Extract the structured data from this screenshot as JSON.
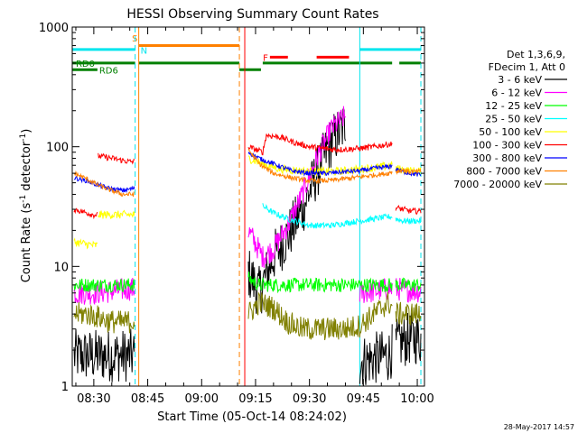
{
  "chart_data": {
    "type": "line",
    "title": "HESSI Observing Summary Count Rates",
    "xlabel": "Start Time (05-Oct-14 08:24:02)",
    "ylabel_main": "Count Rate (s",
    "ylabel_sup1": "-1",
    "ylabel_mid": " detector",
    "ylabel_sup2": "-1",
    "ylabel_end": ")",
    "yscale": "log",
    "xlim": [
      24,
      122
    ],
    "ylim": [
      1,
      1000
    ],
    "x_ticks": [
      {
        "value": 30,
        "label": "08:30"
      },
      {
        "value": 45,
        "label": "08:45"
      },
      {
        "value": 60,
        "label": "09:00"
      },
      {
        "value": 75,
        "label": "09:15"
      },
      {
        "value": 90,
        "label": "09:30"
      },
      {
        "value": 105,
        "label": "09:45"
      },
      {
        "value": 120,
        "label": "10:00"
      }
    ],
    "y_ticks": [
      {
        "value": 1,
        "label": "1"
      },
      {
        "value": 10,
        "label": "10"
      },
      {
        "value": 100,
        "label": "100"
      },
      {
        "value": 1000,
        "label": "1000"
      }
    ],
    "legend_header": [
      "Det 1,3,6,9,",
      "FDecim 1, Att 0"
    ],
    "legend_position": "right",
    "timestamp": "28-May-2017 14:57",
    "flag_bars": [
      {
        "label": "S",
        "color": "#ff8000",
        "level": 700,
        "segments": [
          [
            42.5,
            70.5
          ]
        ]
      },
      {
        "label": "N",
        "color": "#00e5ee",
        "level": 650,
        "segments": [
          [
            24,
            41.5
          ],
          [
            104,
            121
          ]
        ]
      },
      {
        "label": "F",
        "color": "#ff0000",
        "level": 560,
        "segments": [
          [
            79,
            84
          ],
          [
            92,
            101
          ]
        ]
      },
      {
        "label": "RD0",
        "color": "#008000",
        "level": 500,
        "segments": [
          [
            24,
            41.5
          ],
          [
            42.5,
            70.5
          ],
          [
            77,
            113
          ],
          [
            115,
            121
          ]
        ]
      },
      {
        "label": "RD6",
        "color": "#008000",
        "level": 440,
        "segments": [
          [
            24,
            31
          ],
          [
            70.5,
            76.5
          ]
        ]
      }
    ],
    "vertical_markers": [
      {
        "x": 41.5,
        "color": "#00e5ee",
        "style": "dashed"
      },
      {
        "x": 42.5,
        "color": "#ff8000",
        "style": "solid"
      },
      {
        "x": 70.5,
        "color": "#ff8000",
        "style": "dashed"
      },
      {
        "x": 72.0,
        "color": "#ff0000",
        "style": "solid"
      },
      {
        "x": 104.0,
        "color": "#00e5ee",
        "style": "solid"
      },
      {
        "x": 121.0,
        "color": "#00e5ee",
        "style": "dashed"
      }
    ],
    "series": [
      {
        "name": "3 - 6 keV",
        "color": "#000000",
        "noise": 0.45,
        "segments": [
          [
            [
              24.5,
              1.8
            ],
            [
              30,
              1.8
            ],
            [
              35,
              1.8
            ],
            [
              40,
              1.8
            ],
            [
              41.3,
              1.8
            ]
          ],
          [
            [
              73,
              9
            ],
            [
              76,
              6
            ],
            [
              80,
              12
            ],
            [
              84,
              18
            ],
            [
              88,
              30
            ],
            [
              92,
              60
            ],
            [
              96,
              110
            ],
            [
              99,
              140
            ],
            [
              100,
              160
            ]
          ],
          [
            [
              104,
              1.6
            ],
            [
              108,
              1.7
            ],
            [
              112,
              1.8
            ],
            [
              113,
              2
            ]
          ],
          [
            [
              114,
              2.2
            ],
            [
              118,
              2.5
            ],
            [
              121,
              2.5
            ]
          ]
        ]
      },
      {
        "name": "6 - 12 keV",
        "color": "#ff00ff",
        "noise": 0.2,
        "segments": [
          [
            [
              24.5,
              6
            ],
            [
              30,
              6
            ],
            [
              35,
              6.2
            ],
            [
              40,
              6.5
            ],
            [
              41.3,
              6.5
            ]
          ],
          [
            [
              73,
              20
            ],
            [
              77,
              12
            ],
            [
              80,
              14
            ],
            [
              84,
              22
            ],
            [
              88,
              40
            ],
            [
              92,
              80
            ],
            [
              96,
              140
            ],
            [
              99,
              170
            ],
            [
              100,
              180
            ]
          ],
          [
            [
              104,
              6
            ],
            [
              108,
              6.2
            ],
            [
              112,
              6.5
            ],
            [
              113,
              6.5
            ]
          ],
          [
            [
              114,
              6.5
            ],
            [
              118,
              6.3
            ],
            [
              121,
              6.2
            ]
          ]
        ]
      },
      {
        "name": "12 - 25 keV",
        "color": "#00ff00",
        "noise": 0.12,
        "segments": [
          [
            [
              24.5,
              7
            ],
            [
              30,
              7
            ],
            [
              35,
              7
            ],
            [
              40,
              7
            ],
            [
              41.3,
              7
            ]
          ],
          [
            [
              73,
              8
            ],
            [
              76,
              7
            ],
            [
              78,
              7
            ],
            [
              80,
              7
            ],
            [
              90,
              7
            ],
            [
              100,
              7
            ],
            [
              103.9,
              7
            ]
          ],
          [
            [
              104,
              7
            ],
            [
              110,
              7
            ],
            [
              113,
              7
            ]
          ],
          [
            [
              114,
              7
            ],
            [
              118,
              7
            ],
            [
              121,
              7
            ]
          ]
        ]
      },
      {
        "name": "25 - 50 keV",
        "color": "#00ffff",
        "noise": 0.05,
        "segments": [
          [
            [
              77,
              32
            ],
            [
              80,
              28
            ],
            [
              84,
              25
            ],
            [
              90,
              22
            ],
            [
              96,
              22
            ],
            [
              100,
              23
            ],
            [
              104,
              24
            ],
            [
              108,
              25
            ],
            [
              112,
              26
            ],
            [
              113,
              26
            ]
          ],
          [
            [
              114,
              25
            ],
            [
              116,
              24
            ],
            [
              118,
              24
            ],
            [
              121,
              24
            ]
          ]
        ]
      },
      {
        "name": "50 - 100 keV",
        "color": "#ffff00",
        "noise": 0.07,
        "segments": [
          [
            [
              24.5,
              16
            ],
            [
              30,
              15
            ],
            [
              31,
              15
            ]
          ],
          [
            [
              31.2,
              27
            ],
            [
              35,
              27
            ],
            [
              40,
              27
            ],
            [
              41.3,
              27
            ]
          ],
          [
            [
              73,
              80
            ],
            [
              77,
              72
            ],
            [
              82,
              65
            ],
            [
              90,
              62
            ],
            [
              96,
              62
            ],
            [
              100,
              63
            ],
            [
              106,
              66
            ],
            [
              110,
              68
            ],
            [
              113,
              70
            ]
          ],
          [
            [
              114,
              66
            ],
            [
              116,
              64
            ],
            [
              118,
              63
            ],
            [
              121,
              62
            ]
          ]
        ]
      },
      {
        "name": "100 - 300 keV",
        "color": "#ff0000",
        "noise": 0.05,
        "segments": [
          [
            [
              24.5,
              30
            ],
            [
              30,
              27
            ],
            [
              31,
              27
            ]
          ],
          [
            [
              31.2,
              84
            ],
            [
              35,
              80
            ],
            [
              40,
              75
            ],
            [
              41.3,
              75
            ]
          ],
          [
            [
              73,
              100
            ],
            [
              77,
              90
            ],
            [
              78,
              125
            ],
            [
              82,
              120
            ],
            [
              86,
              108
            ],
            [
              90,
              100
            ],
            [
              96,
              95
            ],
            [
              100,
              95
            ],
            [
              104,
              97
            ],
            [
              108,
              100
            ],
            [
              112,
              105
            ],
            [
              113,
              105
            ]
          ],
          [
            [
              114,
              31
            ],
            [
              116,
              30
            ],
            [
              118,
              29
            ],
            [
              121,
              29
            ]
          ]
        ]
      },
      {
        "name": "300 - 800 keV",
        "color": "#0000ff",
        "noise": 0.04,
        "segments": [
          [
            [
              24.5,
              55
            ],
            [
              28,
              52
            ],
            [
              31,
              48
            ],
            [
              34,
              45
            ],
            [
              38,
              43
            ],
            [
              41.3,
              45
            ]
          ],
          [
            [
              73,
              90
            ],
            [
              76,
              80
            ],
            [
              80,
              72
            ],
            [
              85,
              63
            ],
            [
              90,
              60
            ],
            [
              95,
              60
            ],
            [
              100,
              62
            ],
            [
              104,
              63
            ],
            [
              108,
              66
            ],
            [
              112,
              68
            ],
            [
              113,
              70
            ]
          ],
          [
            [
              114,
              65
            ],
            [
              116,
              62
            ],
            [
              118,
              60
            ],
            [
              121,
              58
            ]
          ]
        ]
      },
      {
        "name": "800 - 7000 keV",
        "color": "#ff8000",
        "noise": 0.04,
        "segments": [
          [
            [
              24.5,
              60
            ],
            [
              28,
              54
            ],
            [
              31,
              48
            ],
            [
              34,
              44
            ],
            [
              38,
              40
            ],
            [
              41.3,
              40
            ]
          ],
          [
            [
              73,
              95
            ],
            [
              76,
              72
            ],
            [
              80,
              60
            ],
            [
              85,
              55
            ],
            [
              90,
              52
            ],
            [
              95,
              52
            ],
            [
              100,
              54
            ],
            [
              104,
              56
            ],
            [
              108,
              58
            ],
            [
              112,
              60
            ],
            [
              113,
              62
            ]
          ],
          [
            [
              114,
              62
            ],
            [
              116,
              64
            ],
            [
              118,
              62
            ],
            [
              121,
              62
            ]
          ]
        ]
      },
      {
        "name": "7000 - 20000 keV",
        "color": "#808000",
        "noise": 0.2,
        "segments": [
          [
            [
              24.5,
              4
            ],
            [
              28,
              4
            ],
            [
              31,
              3.8
            ],
            [
              34,
              3.5
            ],
            [
              38,
              3.4
            ],
            [
              41.3,
              3.5
            ]
          ],
          [
            [
              73,
              4
            ],
            [
              76,
              5
            ],
            [
              80,
              4.5
            ],
            [
              84,
              3.4
            ],
            [
              88,
              3
            ],
            [
              92,
              3
            ],
            [
              96,
              3
            ],
            [
              100,
              3
            ],
            [
              104,
              3.2
            ],
            [
              108,
              4
            ],
            [
              112,
              5
            ],
            [
              113,
              4.5
            ]
          ],
          [
            [
              114,
              4
            ],
            [
              116,
              4
            ],
            [
              118,
              4
            ],
            [
              121,
              4
            ]
          ]
        ]
      }
    ]
  }
}
